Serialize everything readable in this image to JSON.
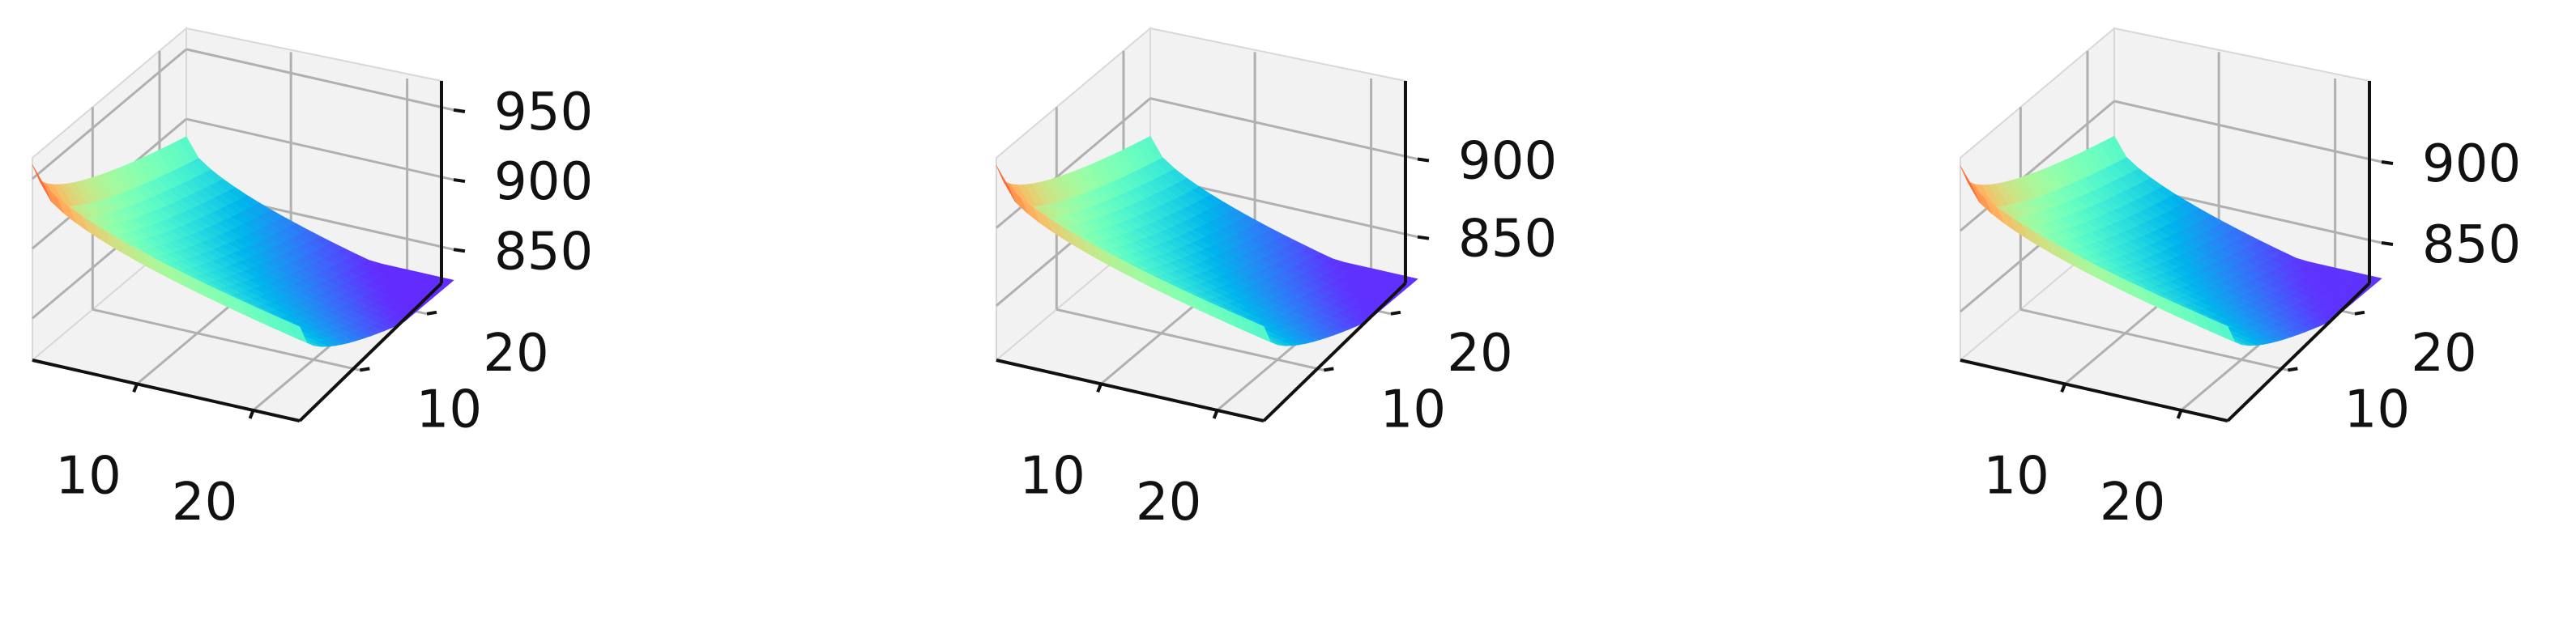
{
  "chart_data": [
    {
      "type": "surface3d",
      "colormap": "rainbow",
      "x_ticks": [
        10,
        20
      ],
      "y_ticks": [
        10,
        20
      ],
      "z_ticks": [
        850,
        900,
        950
      ],
      "z_range": [
        820,
        965
      ],
      "x_range": [
        1,
        24
      ],
      "y_range": [
        1,
        24
      ],
      "grid": true,
      "surface_trend": "peak at low x / low y corner, decreasing toward high x and high y"
    },
    {
      "type": "surface3d",
      "colormap": "rainbow",
      "x_ticks": [
        10,
        20
      ],
      "y_ticks": [
        10,
        20
      ],
      "z_ticks": [
        850,
        900
      ],
      "z_range": [
        815,
        945
      ],
      "x_range": [
        1,
        24
      ],
      "y_range": [
        1,
        24
      ],
      "grid": true,
      "surface_trend": "peak at low x / low y corner, decreasing toward high x and high y"
    },
    {
      "type": "surface3d",
      "colormap": "rainbow",
      "x_ticks": [
        10,
        20
      ],
      "y_ticks": [
        10,
        20
      ],
      "z_ticks": [
        850,
        900
      ],
      "z_range": [
        820,
        945
      ],
      "x_range": [
        1,
        24
      ],
      "y_range": [
        1,
        24
      ],
      "grid": true,
      "surface_trend": "peak at low x / low y corner, decreasing toward high x and high y"
    }
  ]
}
